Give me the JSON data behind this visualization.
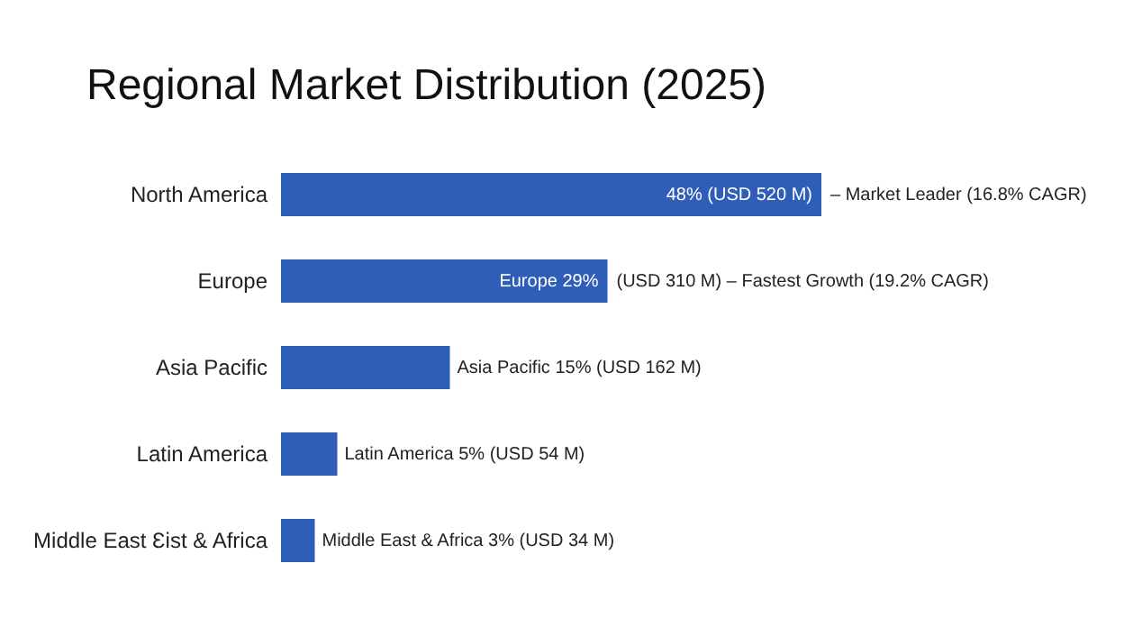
{
  "chart_data": {
    "type": "bar",
    "orientation": "horizontal",
    "title": "Regional Market Distribution (2025)",
    "categories": [
      "North America",
      "Europe",
      "Asia Pacific",
      "Latin America",
      "Middle East Ɛist & Africa"
    ],
    "values": [
      48,
      29,
      15,
      5,
      3
    ],
    "color": "#2e5eb8",
    "value_labels": [
      "48% (USD 520 M)",
      "Europe 29%",
      "Asia Pacific 15% (USD 162 M)",
      "Latin America 5% (USD 54 M)",
      "Middle East & Africa 3% (USD 34 M)"
    ],
    "annotations": [
      {
        "text": "– Market Leader (16.8% CAGR)",
        "x": 48,
        "y": "North America"
      },
      {
        "text": "(USD 310 M) – Fastest Growth (19.2% CAGR)",
        "x": 29,
        "y": "Europe"
      }
    ]
  }
}
